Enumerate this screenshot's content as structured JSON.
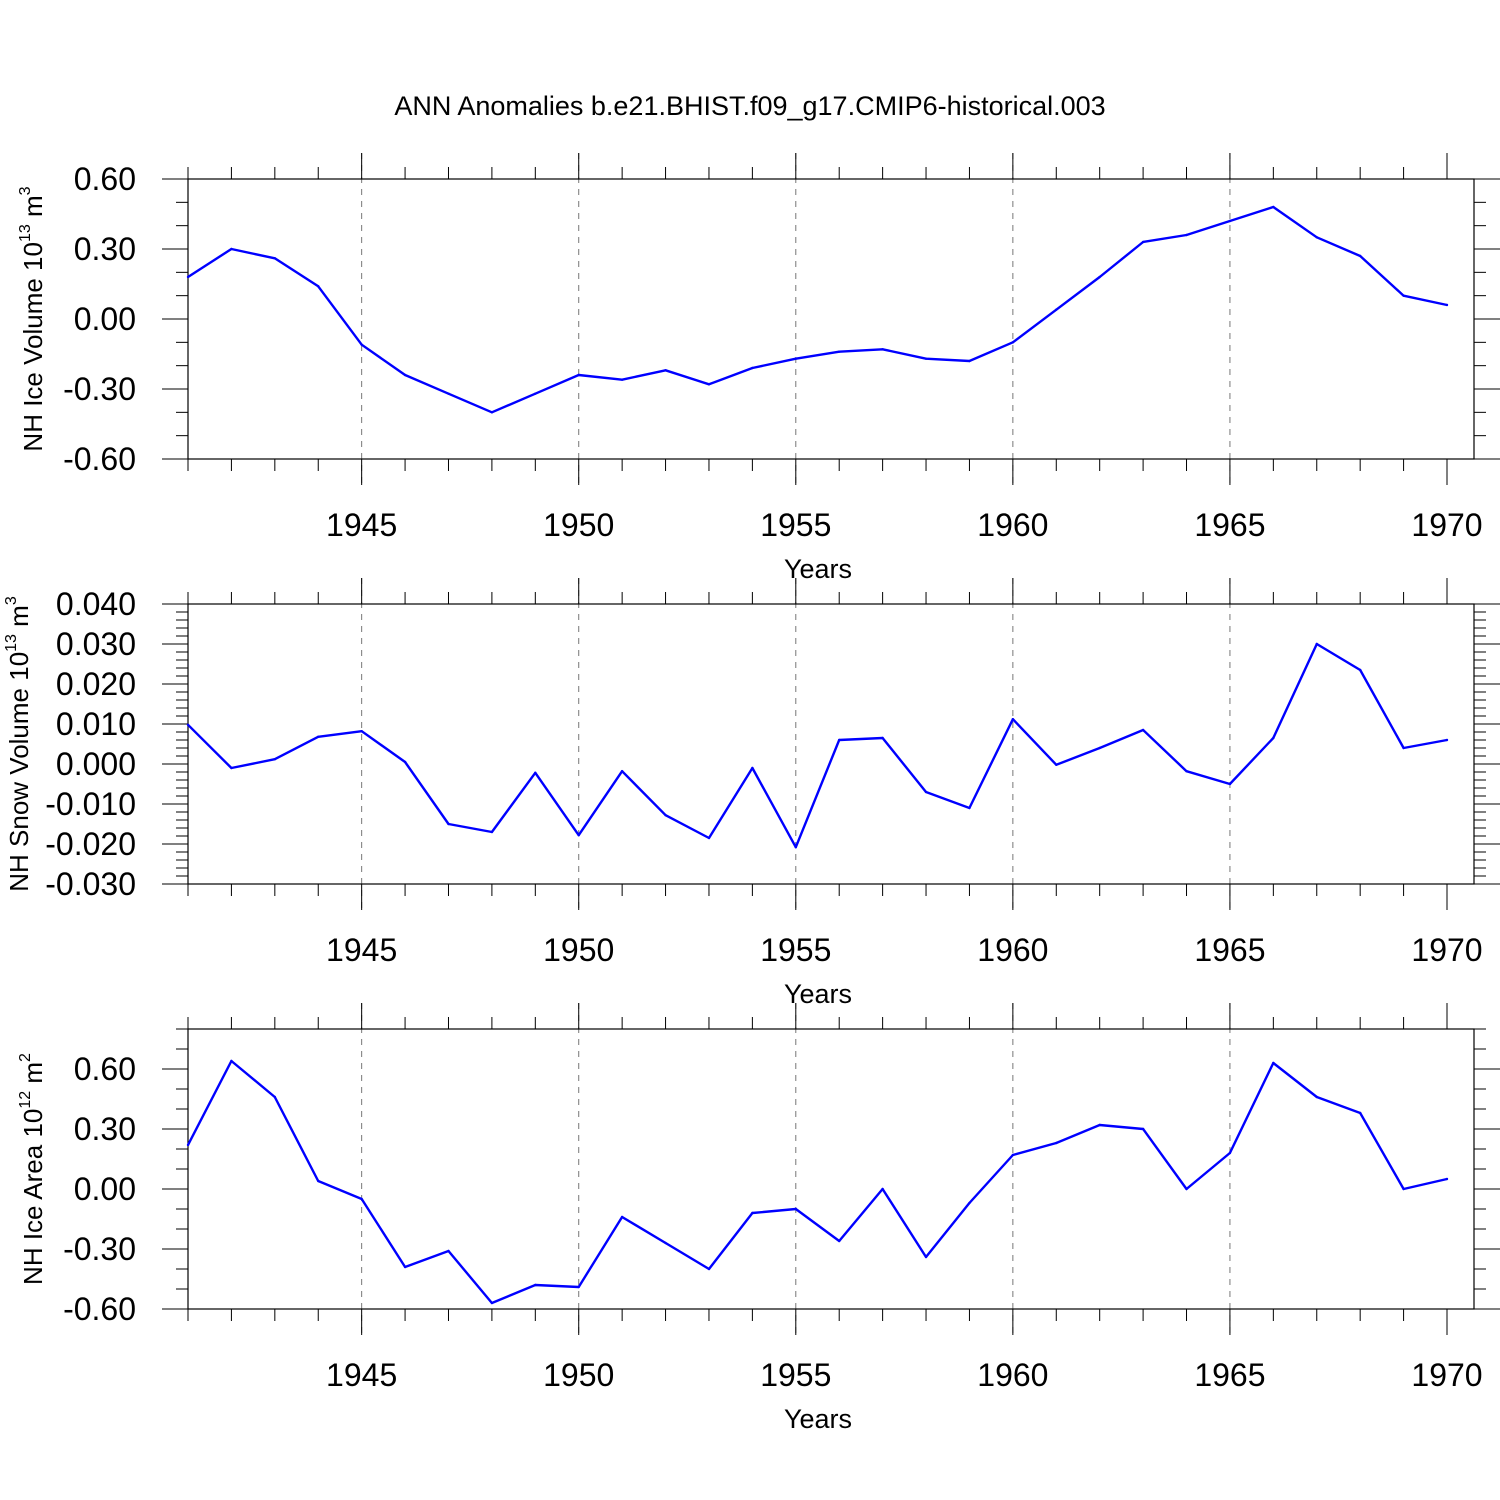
{
  "title": "ANN Anomalies b.e21.BHIST.f09_g17.CMIP6-historical.003",
  "colors": {
    "line": "#0000ff",
    "grid": "#777777"
  },
  "chart_data": [
    {
      "type": "line",
      "ylabel": {
        "main": "NH Ice Volume 10",
        "exp": "13",
        "unit": " m",
        "unit_exp": "3"
      },
      "xlabel": "Years",
      "xlim": [
        1941,
        1970
      ],
      "ylim": [
        -0.6,
        0.6
      ],
      "yticks": [
        -0.6,
        -0.3,
        0.0,
        0.3,
        0.6
      ],
      "ytick_labels": [
        "-0.60",
        "-0.30",
        "0.00",
        "0.30",
        "0.60"
      ],
      "yminor": 0.1,
      "xticks": [
        1945,
        1950,
        1955,
        1960,
        1965,
        1970
      ],
      "xtick_labels": [
        "1945",
        "1950",
        "1955",
        "1960",
        "1965",
        "1970"
      ],
      "series": [
        {
          "name": "NH Ice Volume",
          "x": [
            1941,
            1942,
            1943,
            1944,
            1945,
            1946,
            1947,
            1948,
            1949,
            1950,
            1951,
            1952,
            1953,
            1954,
            1955,
            1956,
            1957,
            1958,
            1959,
            1960,
            1961,
            1962,
            1963,
            1964,
            1965,
            1966,
            1967,
            1968,
            1969,
            1970
          ],
          "values": [
            0.18,
            0.3,
            0.26,
            0.14,
            -0.11,
            -0.24,
            -0.32,
            -0.4,
            -0.32,
            -0.24,
            -0.26,
            -0.22,
            -0.28,
            -0.21,
            -0.17,
            -0.14,
            -0.13,
            -0.17,
            -0.18,
            -0.1,
            0.04,
            0.18,
            0.33,
            0.36,
            0.42,
            0.48,
            0.35,
            0.27,
            0.1,
            0.06
          ]
        }
      ]
    },
    {
      "type": "line",
      "ylabel": {
        "main": "NH Snow Volume 10",
        "exp": "13",
        "unit": " m",
        "unit_exp": "3"
      },
      "xlabel": "Years",
      "xlim": [
        1941,
        1970
      ],
      "ylim": [
        -0.03,
        0.04
      ],
      "yticks": [
        -0.03,
        -0.02,
        -0.01,
        0.0,
        0.01,
        0.02,
        0.03,
        0.04
      ],
      "ytick_labels": [
        "-0.030",
        "-0.020",
        "-0.010",
        "0.000",
        "0.010",
        "0.020",
        "0.030",
        "0.040"
      ],
      "yminor": 0.002,
      "xticks": [
        1945,
        1950,
        1955,
        1960,
        1965,
        1970
      ],
      "xtick_labels": [
        "1945",
        "1950",
        "1955",
        "1960",
        "1965",
        "1970"
      ],
      "series": [
        {
          "name": "NH Snow Volume",
          "x": [
            1941,
            1942,
            1943,
            1944,
            1945,
            1946,
            1947,
            1948,
            1949,
            1950,
            1951,
            1952,
            1953,
            1954,
            1955,
            1956,
            1957,
            1958,
            1959,
            1960,
            1961,
            1962,
            1963,
            1964,
            1965,
            1966,
            1967,
            1968,
            1969,
            1970
          ],
          "values": [
            0.0098,
            -0.001,
            0.0012,
            0.0068,
            0.0082,
            0.0005,
            -0.015,
            -0.017,
            -0.0022,
            -0.0178,
            -0.0018,
            -0.0128,
            -0.0185,
            -0.001,
            -0.0208,
            0.006,
            0.0065,
            -0.007,
            -0.011,
            0.0112,
            -0.0002,
            0.004,
            0.0085,
            -0.0018,
            -0.005,
            0.0065,
            0.03,
            0.0235,
            0.004,
            0.006
          ]
        }
      ]
    },
    {
      "type": "line",
      "ylabel": {
        "main": "NH Ice Area 10",
        "exp": "12",
        "unit": " m",
        "unit_exp": "2"
      },
      "xlabel": "Years",
      "xlim": [
        1941,
        1970
      ],
      "ylim": [
        -0.6,
        0.8
      ],
      "yticks": [
        -0.6,
        -0.3,
        0.0,
        0.3,
        0.6
      ],
      "ytick_labels": [
        "-0.60",
        "-0.30",
        "0.00",
        "0.30",
        "0.60"
      ],
      "yminor": 0.1,
      "xticks": [
        1945,
        1950,
        1955,
        1960,
        1965,
        1970
      ],
      "xtick_labels": [
        "1945",
        "1950",
        "1955",
        "1960",
        "1965",
        "1970"
      ],
      "series": [
        {
          "name": "NH Ice Area",
          "x": [
            1941,
            1942,
            1943,
            1944,
            1945,
            1946,
            1947,
            1948,
            1949,
            1950,
            1951,
            1952,
            1953,
            1954,
            1955,
            1956,
            1957,
            1958,
            1959,
            1960,
            1961,
            1962,
            1963,
            1964,
            1965,
            1966,
            1967,
            1968,
            1969,
            1970
          ],
          "values": [
            0.22,
            0.64,
            0.46,
            0.04,
            -0.05,
            -0.39,
            -0.31,
            -0.57,
            -0.48,
            -0.49,
            -0.14,
            -0.27,
            -0.4,
            -0.12,
            -0.1,
            -0.26,
            0.0,
            -0.34,
            -0.07,
            0.17,
            0.23,
            0.32,
            0.3,
            0.0,
            0.18,
            0.63,
            0.46,
            0.38,
            0.0,
            0.05
          ]
        }
      ]
    }
  ]
}
